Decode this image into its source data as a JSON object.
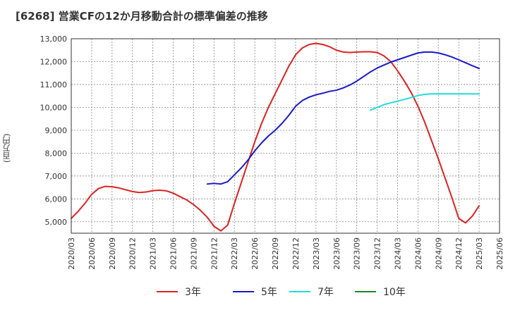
{
  "chart_data": {
    "type": "line",
    "title": "[6268]  営業CFの12か月移動合計の標準偏差の推移",
    "ylabel": "(百万円)",
    "xlabel": "",
    "ylim": [
      4500,
      13000
    ],
    "y_ticks": [
      5000,
      6000,
      7000,
      8000,
      9000,
      10000,
      11000,
      12000,
      13000
    ],
    "y_tick_labels": [
      "5,000",
      "6,000",
      "7,000",
      "8,000",
      "9,000",
      "10,000",
      "11,000",
      "12,000",
      "13,000"
    ],
    "x_ticks": [
      "2020/03",
      "2020/06",
      "2020/09",
      "2020/12",
      "2021/03",
      "2021/06",
      "2021/09",
      "2021/12",
      "2022/03",
      "2022/06",
      "2022/09",
      "2022/12",
      "2023/03",
      "2023/06",
      "2023/09",
      "2023/12",
      "2024/03",
      "2024/06",
      "2024/09",
      "2024/12",
      "2025/03",
      "2025/06"
    ],
    "grid": true,
    "legend_position": "bottom",
    "series": [
      {
        "name": "3年",
        "color": "#dd2222",
        "x": [
          "2020/03",
          "2020/04",
          "2020/05",
          "2020/06",
          "2020/07",
          "2020/08",
          "2020/09",
          "2020/10",
          "2020/11",
          "2020/12",
          "2021/01",
          "2021/02",
          "2021/03",
          "2021/04",
          "2021/05",
          "2021/06",
          "2021/07",
          "2021/08",
          "2021/09",
          "2021/10",
          "2021/11",
          "2021/12",
          "2022/01",
          "2022/02",
          "2022/03",
          "2022/04",
          "2022/05",
          "2022/06",
          "2022/07",
          "2022/08",
          "2022/09",
          "2022/10",
          "2022/11",
          "2022/12",
          "2023/01",
          "2023/02",
          "2023/03",
          "2023/04",
          "2023/05",
          "2023/06",
          "2023/07",
          "2023/08",
          "2023/09",
          "2023/10",
          "2023/11",
          "2023/12",
          "2024/01",
          "2024/02",
          "2024/03",
          "2024/04",
          "2024/05",
          "2024/06",
          "2024/07",
          "2024/08",
          "2024/09",
          "2024/10",
          "2024/11",
          "2024/12",
          "2025/01",
          "2025/02",
          "2025/03"
        ],
        "values": [
          5150,
          5450,
          5800,
          6200,
          6450,
          6550,
          6530,
          6480,
          6400,
          6320,
          6280,
          6300,
          6360,
          6380,
          6350,
          6250,
          6100,
          5950,
          5750,
          5500,
          5200,
          4800,
          4600,
          4850,
          5800,
          6700,
          7600,
          8500,
          9300,
          10000,
          10600,
          11200,
          11800,
          12300,
          12600,
          12750,
          12800,
          12750,
          12650,
          12500,
          12420,
          12400,
          12420,
          12430,
          12430,
          12400,
          12250,
          12000,
          11600,
          11150,
          10650,
          10050,
          9350,
          8550,
          7750,
          6900,
          6050,
          5150,
          4950,
          5250,
          5700
        ]
      },
      {
        "name": "5年",
        "color": "#1a1acc",
        "x": [
          "2021/11",
          "2021/12",
          "2022/01",
          "2022/02",
          "2022/03",
          "2022/04",
          "2022/05",
          "2022/06",
          "2022/07",
          "2022/08",
          "2022/09",
          "2022/10",
          "2022/11",
          "2022/12",
          "2023/01",
          "2023/02",
          "2023/03",
          "2023/04",
          "2023/05",
          "2023/06",
          "2023/07",
          "2023/08",
          "2023/09",
          "2023/10",
          "2023/11",
          "2023/12",
          "2024/01",
          "2024/02",
          "2024/03",
          "2024/04",
          "2024/05",
          "2024/06",
          "2024/07",
          "2024/08",
          "2024/09",
          "2024/10",
          "2024/11",
          "2024/12",
          "2025/01",
          "2025/02",
          "2025/03"
        ],
        "values": [
          6650,
          6680,
          6650,
          6750,
          7050,
          7350,
          7700,
          8100,
          8450,
          8750,
          9000,
          9300,
          9650,
          10050,
          10300,
          10450,
          10550,
          10620,
          10700,
          10750,
          10850,
          10980,
          11150,
          11350,
          11550,
          11720,
          11850,
          11980,
          12080,
          12180,
          12280,
          12380,
          12420,
          12420,
          12380,
          12300,
          12200,
          12080,
          11950,
          11820,
          11700
        ]
      },
      {
        "name": "7年",
        "color": "#22dddd",
        "x": [
          "2023/11",
          "2023/12",
          "2024/01",
          "2024/02",
          "2024/03",
          "2024/04",
          "2024/05",
          "2024/06",
          "2024/07",
          "2024/08",
          "2024/09",
          "2024/10",
          "2024/11",
          "2024/12",
          "2025/01",
          "2025/02",
          "2025/03"
        ],
        "values": [
          9880,
          10000,
          10120,
          10200,
          10270,
          10350,
          10430,
          10520,
          10570,
          10590,
          10590,
          10590,
          10590,
          10590,
          10590,
          10590,
          10590
        ]
      },
      {
        "name": "10年",
        "color": "#228822",
        "x": [],
        "values": []
      }
    ]
  }
}
